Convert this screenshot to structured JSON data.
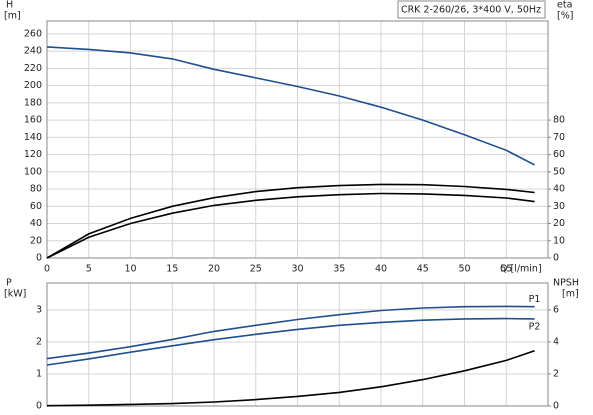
{
  "chart_data": [
    {
      "type": "line",
      "title": "CRK 2-260/26, 3*400 V, 50Hz",
      "ylabel": "H",
      "yunit": "[m]",
      "y2label": "eta",
      "y2unit": "[%]",
      "xlabel": "Q [l/min]",
      "x": [
        0,
        5,
        10,
        15,
        20,
        25,
        30,
        35,
        40,
        45,
        50,
        55,
        58.4
      ],
      "xlim": [
        0,
        60
      ],
      "xticks": [
        0,
        5,
        10,
        15,
        20,
        25,
        30,
        35,
        40,
        45,
        50,
        55
      ],
      "ylim": [
        0,
        275
      ],
      "yticks": [
        0,
        20,
        40,
        60,
        80,
        100,
        120,
        140,
        160,
        180,
        200,
        220,
        240,
        260
      ],
      "y2lim": [
        0,
        137.5
      ],
      "y2ticks": [
        0,
        10,
        20,
        30,
        40,
        50,
        60,
        70,
        80
      ],
      "grid": true,
      "series": [
        {
          "color": "#1f4f8f",
          "values": [
            245,
            242,
            238,
            231,
            219,
            209,
            199,
            188,
            175,
            160,
            143,
            125,
            108
          ]
        },
        {
          "color": "#000000",
          "axis": "y2",
          "values": [
            0,
            14,
            23,
            30,
            35,
            38.5,
            40.8,
            42,
            42.7,
            42.5,
            41.5,
            39.8,
            38
          ]
        },
        {
          "color": "#000000",
          "axis": "y2",
          "values": [
            0,
            12,
            20,
            26,
            30.5,
            33.5,
            35.5,
            36.7,
            37.4,
            37.2,
            36.3,
            34.8,
            32.7
          ]
        }
      ]
    },
    {
      "type": "line",
      "ylabel": "P",
      "yunit": "[kW]",
      "y2label": "NPSH",
      "y2unit": "[m]",
      "x": [
        0,
        5,
        10,
        15,
        20,
        25,
        30,
        35,
        40,
        45,
        50,
        55,
        58.4
      ],
      "xlim": [
        0,
        60
      ],
      "ylim": [
        0,
        3.84
      ],
      "yticks": [
        0,
        1,
        2,
        3
      ],
      "y2lim": [
        0,
        7.68
      ],
      "y2ticks": [
        0,
        2,
        4,
        6
      ],
      "grid": true,
      "series": [
        {
          "name": "P1",
          "color": "#1f4f8f",
          "values": [
            1.48,
            1.65,
            1.85,
            2.08,
            2.33,
            2.52,
            2.7,
            2.85,
            2.98,
            3.06,
            3.1,
            3.11,
            3.1
          ]
        },
        {
          "name": "P2",
          "color": "#1f4f8f",
          "values": [
            1.28,
            1.47,
            1.68,
            1.88,
            2.07,
            2.24,
            2.39,
            2.52,
            2.61,
            2.68,
            2.72,
            2.73,
            2.72
          ]
        },
        {
          "color": "#000000",
          "axis": "y2",
          "values": [
            0.02,
            0.05,
            0.1,
            0.15,
            0.25,
            0.4,
            0.6,
            0.85,
            1.2,
            1.65,
            2.2,
            2.85,
            3.45
          ]
        }
      ]
    }
  ]
}
